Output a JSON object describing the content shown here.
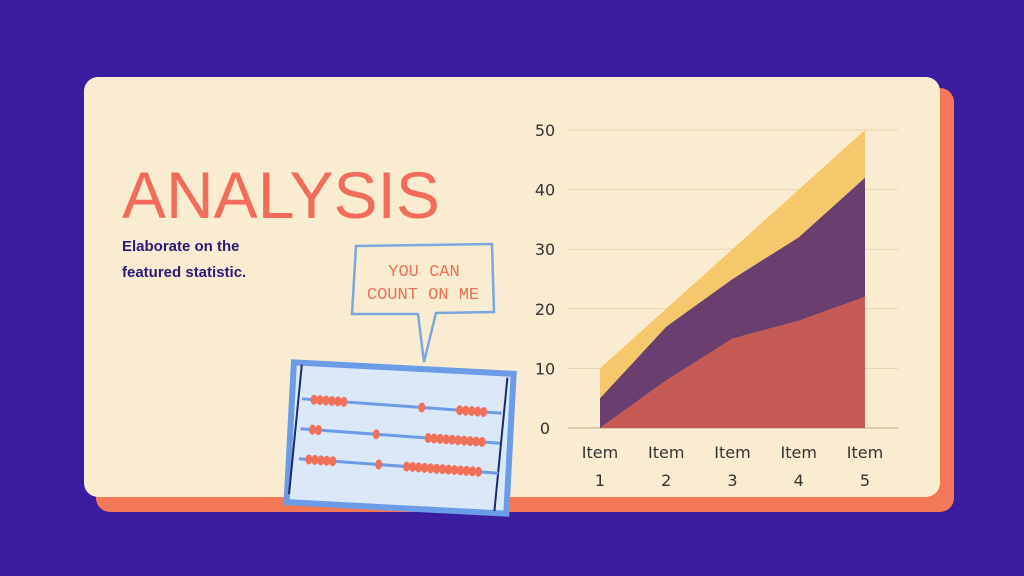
{
  "title": "ANALYSIS",
  "subtitle_lines": [
    "Elaborate on the",
    "featured statistic."
  ],
  "bubble_lines": [
    "YOU CAN",
    "COUNT ON ME"
  ],
  "chart_data": {
    "type": "stacked_area",
    "categories": [
      "Item 1",
      "Item 2",
      "Item 3",
      "Item 4",
      "Item 5"
    ],
    "series": [
      {
        "color": "#c65a55",
        "values": [
          0,
          8,
          15,
          18,
          22
        ]
      },
      {
        "color": "#6a3e6e",
        "values": [
          5,
          9,
          10,
          14,
          20
        ]
      },
      {
        "color": "#f4c86b",
        "values": [
          5,
          3,
          5,
          8,
          8
        ]
      }
    ],
    "ylim": [
      0,
      50
    ],
    "yticks": [
      0,
      10,
      20,
      30,
      40,
      50
    ],
    "grid": true
  }
}
